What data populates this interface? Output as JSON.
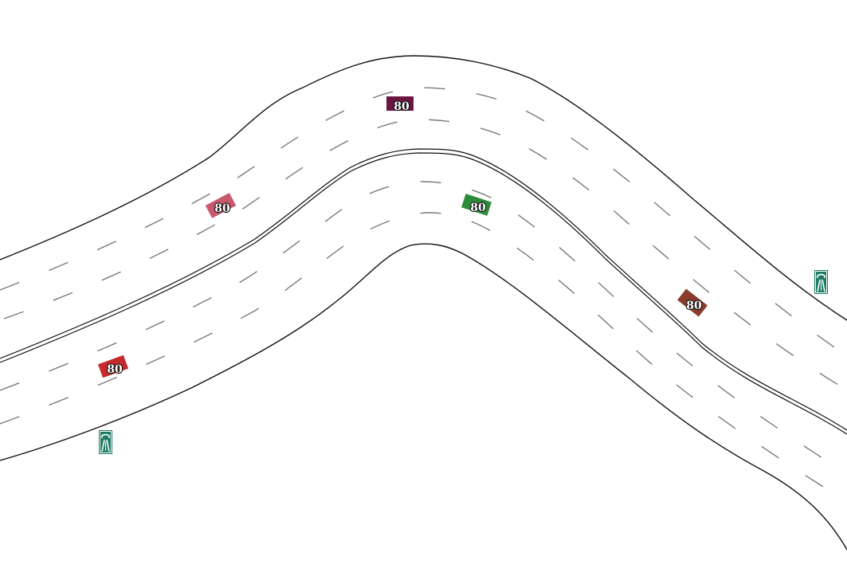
{
  "scene": {
    "background_color": "#ffffff",
    "road_color": "#111111",
    "lane_marking_color": "#7a7a7a"
  },
  "vehicles": [
    {
      "id": "car-dark-purple",
      "color": "#6b1640",
      "speed": "80"
    },
    {
      "id": "car-pink",
      "color": "#c8586e",
      "speed": "80"
    },
    {
      "id": "car-green",
      "color": "#2e8b3a",
      "speed": "80"
    },
    {
      "id": "car-brown",
      "color": "#8a3b2c",
      "speed": "80"
    },
    {
      "id": "car-red",
      "color": "#c62a2a",
      "speed": "80"
    }
  ],
  "signs": [
    {
      "id": "motorway-sign-right",
      "icon": "motorway-icon",
      "color": "#1f7a64"
    },
    {
      "id": "motorway-sign-left",
      "icon": "motorway-icon",
      "color": "#1f7a64"
    }
  ]
}
